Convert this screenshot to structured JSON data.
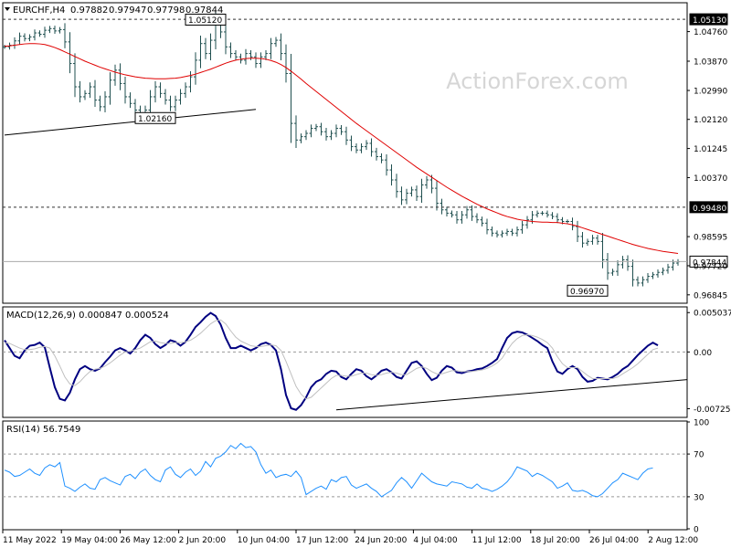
{
  "chart_data": [
    {
      "type": "candlestick",
      "title": "EURCHF,H4",
      "ohlc": [
        "0.97882",
        "0.97947",
        "0.97798",
        "0.97844"
      ],
      "watermark": "ActionForex.com",
      "ylim": [
        0.9662,
        1.056
      ],
      "yticks": [
        "1.04760",
        "1.03870",
        "1.02990",
        "1.02120",
        "1.01245",
        "1.00370",
        "0.98595",
        "0.97720",
        "0.96845"
      ],
      "levels": [
        {
          "value": 1.0513,
          "label": "1.05130",
          "style": "dashed",
          "tag": "dark"
        },
        {
          "value": 0.9948,
          "label": "0.99480",
          "style": "dashed",
          "tag": "dark"
        },
        {
          "value": 0.97844,
          "label": "0.97844",
          "style": "solid",
          "tag": "light"
        }
      ],
      "annotations": [
        {
          "label": "1.05120",
          "x": 44,
          "y": 1.0512,
          "side": "left"
        },
        {
          "label": "1.02160",
          "x": 26,
          "y": 1.0216,
          "side": "right"
        },
        {
          "label": "0.96970",
          "x": 120,
          "y": 0.9697,
          "side": "left"
        }
      ],
      "trendline": {
        "x1": 0,
        "y1": 1.0165,
        "x2": 50,
        "y2": 1.0242
      },
      "points": [
        1.043,
        1.0435,
        1.0448,
        1.0462,
        1.0455,
        1.046,
        1.0472,
        1.0468,
        1.048,
        1.0485,
        1.0478,
        1.0482,
        1.0445,
        1.038,
        1.031,
        1.028,
        1.029,
        1.031,
        1.027,
        1.025,
        1.028,
        1.033,
        1.036,
        1.032,
        1.028,
        1.026,
        1.024,
        1.022,
        1.024,
        1.028,
        1.031,
        1.029,
        1.027,
        1.025,
        1.027,
        1.029,
        1.031,
        1.034,
        1.039,
        1.044,
        1.041,
        1.045,
        1.051,
        1.0475,
        1.043,
        1.041,
        1.04,
        1.039,
        1.041,
        1.04,
        1.038,
        1.04,
        1.041,
        1.044,
        1.045,
        1.041,
        1.035,
        1.02,
        1.015,
        1.016,
        1.017,
        1.0185,
        1.019,
        1.0175,
        1.016,
        1.017,
        1.0185,
        1.0175,
        1.015,
        1.013,
        1.012,
        1.013,
        1.014,
        1.0115,
        1.01,
        1.009,
        1.006,
        1.003,
        0.9995,
        0.997,
        0.999,
        1.0,
        0.998,
        1.0015,
        1.003,
        1.0005,
        0.996,
        0.994,
        0.993,
        0.9925,
        0.991,
        0.9925,
        0.994,
        0.992,
        0.991,
        0.99,
        0.988,
        0.987,
        0.9865,
        0.987,
        0.9875,
        0.987,
        0.988,
        0.9895,
        0.991,
        0.9925,
        0.993,
        0.993,
        0.9925,
        0.992,
        0.991,
        0.9905,
        0.9905,
        0.989,
        0.986,
        0.984,
        0.9845,
        0.9855,
        0.9845,
        0.979,
        0.975,
        0.9755,
        0.9775,
        0.979,
        0.977,
        0.973,
        0.972,
        0.973,
        0.974,
        0.9745,
        0.9752,
        0.9758,
        0.9768,
        0.978,
        0.9784
      ],
      "ma": [
        1.0432,
        1.0433,
        1.0435,
        1.0437,
        1.0439,
        1.044,
        1.044,
        1.0439,
        1.0437,
        1.0433,
        1.0428,
        1.0422,
        1.0415,
        1.0408,
        1.0401,
        1.0394,
        1.0387,
        1.0381,
        1.0375,
        1.0369,
        1.0364,
        1.0359,
        1.0354,
        1.035,
        1.0346,
        1.0343,
        1.034,
        1.0338,
        1.0336,
        1.0335,
        1.0334,
        1.0334,
        1.0334,
        1.0335,
        1.0336,
        1.0338,
        1.0341,
        1.0344,
        1.0348,
        1.0353,
        1.0358,
        1.0363,
        1.0369,
        1.0375,
        1.0381,
        1.0386,
        1.039,
        1.0393,
        1.0395,
        1.0396,
        1.0396,
        1.0395,
        1.0393,
        1.0389,
        1.0384,
        1.0377,
        1.0368,
        1.0357,
        1.0345,
        1.0333,
        1.032,
        1.0308,
        1.0296,
        1.0284,
        1.0272,
        1.026,
        1.0248,
        1.0236,
        1.0224,
        1.0212,
        1.02,
        1.0189,
        1.0178,
        1.0167,
        1.0156,
        1.0145,
        1.0134,
        1.0123,
        1.0112,
        1.0101,
        1.009,
        1.0079,
        1.0068,
        1.0058,
        1.0048,
        1.0038,
        1.0028,
        1.0018,
        1.0008,
        0.9999,
        0.999,
        0.9981,
        0.9973,
        0.9965,
        0.9957,
        0.995,
        0.9943,
        0.9937,
        0.9931,
        0.9925,
        0.992,
        0.9916,
        0.9912,
        0.9909,
        0.9907,
        0.9905,
        0.9904,
        0.9903,
        0.9903,
        0.9902,
        0.9902,
        0.99,
        0.9898,
        0.9895,
        0.9891,
        0.9886,
        0.9881,
        0.9876,
        0.9871,
        0.9866,
        0.9861,
        0.9856,
        0.9851,
        0.9846,
        0.9841,
        0.9836,
        0.9832,
        0.9828,
        0.9824,
        0.9821,
        0.9818,
        0.9815,
        0.9813,
        0.9811,
        0.9809
      ]
    },
    {
      "type": "line",
      "title": "MACD(12,26,9) 0.000847 0.000524",
      "ylim": [
        -0.00825,
        0.00565
      ],
      "yticks": [
        "0.005037",
        "0.00",
        "-0.007251"
      ],
      "zero_line": true,
      "trendline": {
        "x1": 66,
        "y1": -0.0074,
        "x2": 149,
        "y2": -0.0028
      },
      "series": [
        {
          "role": "macd",
          "color": "#000080",
          "values": [
            0.0015,
            0.0005,
            -0.0005,
            -0.0008,
            0.0002,
            0.0008,
            0.0009,
            0.0012,
            0.0006,
            -0.002,
            -0.0045,
            -0.006,
            -0.0062,
            -0.0052,
            -0.0035,
            -0.0022,
            -0.0018,
            -0.0022,
            -0.0024,
            -0.0021,
            -0.0013,
            -0.0006,
            0.0002,
            0.0005,
            0.0002,
            -0.0002,
            0.0005,
            0.0015,
            0.0022,
            0.0018,
            0.001,
            0.0005,
            0.0009,
            0.0015,
            0.0013,
            0.0008,
            0.0013,
            0.0022,
            0.0032,
            0.0038,
            0.0045,
            0.005,
            0.0046,
            0.0035,
            0.0018,
            0.0005,
            0.0005,
            0.0008,
            0.0005,
            0.0002,
            0.0005,
            0.001,
            0.0012,
            0.0009,
            0.0002,
            -0.0022,
            -0.0055,
            -0.0072,
            -0.0074,
            -0.0068,
            -0.0058,
            -0.0045,
            -0.0038,
            -0.0035,
            -0.0028,
            -0.0024,
            -0.0025,
            -0.0032,
            -0.0035,
            -0.0028,
            -0.0022,
            -0.0024,
            -0.0031,
            -0.0035,
            -0.003,
            -0.0024,
            -0.0022,
            -0.0026,
            -0.0032,
            -0.0034,
            -0.0024,
            -0.0014,
            -0.0012,
            -0.0018,
            -0.0028,
            -0.0036,
            -0.0033,
            -0.0024,
            -0.0018,
            -0.002,
            -0.0026,
            -0.0027,
            -0.0025,
            -0.0024,
            -0.0022,
            -0.0021,
            -0.0018,
            -0.0014,
            -0.0009,
            0.0005,
            0.0018,
            0.0024,
            0.0026,
            0.0025,
            0.0022,
            0.0018,
            0.0014,
            0.0009,
            0.0005,
            -0.0012,
            -0.0025,
            -0.0028,
            -0.0022,
            -0.0018,
            -0.0022,
            -0.0032,
            -0.0038,
            -0.0037,
            -0.0033,
            -0.0034,
            -0.0035,
            -0.0032,
            -0.0028,
            -0.0022,
            -0.0018,
            -0.0011,
            -0.0004,
            0.0002,
            0.0008,
            0.0012,
            0.00085
          ]
        },
        {
          "role": "signal",
          "color": "#c0c0c0",
          "values": [
            0.0012,
            0.0011,
            0.0008,
            0.0005,
            0.0003,
            0.0003,
            0.0004,
            0.0006,
            0.0007,
            0.0005,
            -0.0005,
            -0.0018,
            -0.0032,
            -0.0041,
            -0.0043,
            -0.0038,
            -0.0031,
            -0.0025,
            -0.0022,
            -0.0021,
            -0.0018,
            -0.0014,
            -0.0009,
            -0.0004,
            0.0,
            0.0001,
            0.0003,
            0.0005,
            0.0009,
            0.0013,
            0.0014,
            0.0012,
            0.0011,
            0.0011,
            0.0012,
            0.0012,
            0.0013,
            0.0015,
            0.0019,
            0.0024,
            0.003,
            0.0036,
            0.004,
            0.0041,
            0.0036,
            0.0027,
            0.0019,
            0.0014,
            0.0011,
            0.0008,
            0.0007,
            0.0007,
            0.0008,
            0.0009,
            0.0008,
            0.0002,
            -0.0012,
            -0.0028,
            -0.0044,
            -0.0054,
            -0.006,
            -0.0058,
            -0.0052,
            -0.0046,
            -0.004,
            -0.0034,
            -0.003,
            -0.003,
            -0.0031,
            -0.0031,
            -0.0029,
            -0.0027,
            -0.0027,
            -0.0029,
            -0.003,
            -0.0029,
            -0.0027,
            -0.0026,
            -0.0027,
            -0.0029,
            -0.0029,
            -0.0025,
            -0.0021,
            -0.0019,
            -0.0021,
            -0.0025,
            -0.0028,
            -0.0028,
            -0.0026,
            -0.0024,
            -0.0024,
            -0.0025,
            -0.0025,
            -0.0025,
            -0.0024,
            -0.0023,
            -0.0021,
            -0.0018,
            -0.0014,
            -0.0008,
            0.0002,
            0.0011,
            0.0017,
            0.0021,
            0.0022,
            0.0021,
            0.0019,
            0.0016,
            0.0012,
            0.0005,
            -0.0006,
            -0.0015,
            -0.002,
            -0.002,
            -0.002,
            -0.0025,
            -0.003,
            -0.0034,
            -0.0034,
            -0.0034,
            -0.0034,
            -0.0034,
            -0.0032,
            -0.0028,
            -0.0024,
            -0.002,
            -0.0015,
            -0.0009,
            -0.0003,
            0.0003,
            0.0005
          ]
        }
      ]
    },
    {
      "type": "line",
      "title": "RSI(14) 56.7549",
      "ylim": [
        0,
        100
      ],
      "yticks": [
        "100",
        "70",
        "30",
        "0"
      ],
      "levels": [
        70,
        30
      ],
      "series": [
        {
          "role": "rsi",
          "color": "#1e90ff",
          "values": [
            55,
            53,
            49,
            50,
            53,
            56,
            52,
            50,
            57,
            60,
            58,
            62,
            40,
            38,
            35,
            39,
            42,
            38,
            37,
            46,
            48,
            45,
            43,
            41,
            49,
            51,
            47,
            53,
            56,
            50,
            46,
            44,
            55,
            58,
            51,
            48,
            53,
            56,
            50,
            54,
            63,
            58,
            66,
            68,
            72,
            78,
            75,
            80,
            76,
            77,
            72,
            60,
            52,
            55,
            48,
            50,
            51,
            49,
            54,
            48,
            32,
            35,
            38,
            40,
            37,
            46,
            44,
            48,
            49,
            41,
            38,
            40,
            42,
            38,
            35,
            30,
            33,
            36,
            43,
            48,
            44,
            38,
            45,
            52,
            48,
            44,
            42,
            41,
            40,
            44,
            43,
            42,
            39,
            38,
            42,
            38,
            37,
            35,
            37,
            40,
            44,
            50,
            58,
            56,
            54,
            49,
            52,
            50,
            47,
            44,
            38,
            40,
            43,
            36,
            35,
            36,
            34,
            31,
            30,
            33,
            38,
            43,
            46,
            52,
            50,
            48,
            46,
            52,
            56,
            57
          ]
        }
      ]
    }
  ],
  "xlabels": [
    "11 May 2022",
    "19 May 04:00",
    "26 May 12:00",
    "2 Jun 20:00",
    "10 Jun 04:00",
    "17 Jun 12:00",
    "24 Jun 20:00",
    "4 Jul 04:00",
    "11 Jul 12:00",
    "18 Jul 20:00",
    "26 Jul 04:00",
    "2 Aug 12:00"
  ],
  "colors": {
    "ma": "#e00000",
    "price": "#1f4f4f",
    "macd": "#000080",
    "signal": "#c0c0c0",
    "rsi": "#1e90ff",
    "grid": "#000000",
    "tag_dark": "#000000",
    "tag_light": "#ffffff"
  }
}
